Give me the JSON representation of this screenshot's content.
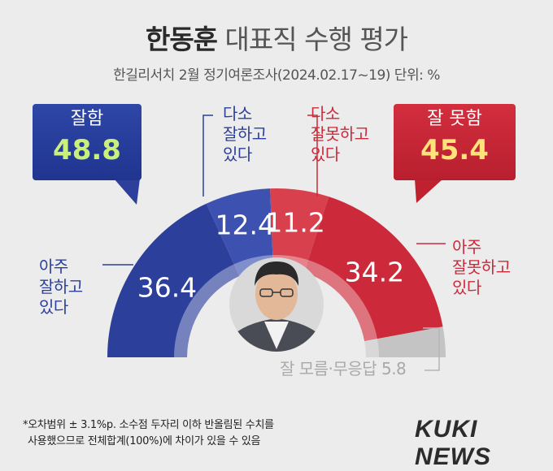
{
  "title_main": "한동훈",
  "title_rest": " 대표직 수행 평가",
  "subtitle": "한길리서치 2월 정기여론조사(2024.02.17~19) 단위: %",
  "summary": {
    "good": {
      "label": "잘함",
      "value": "48.8"
    },
    "bad": {
      "label": "잘 못함",
      "value": "45.4"
    }
  },
  "categories": {
    "very_good": {
      "line1": "아주",
      "line2": "잘하고",
      "line3": "있다"
    },
    "somewhat_good": {
      "line1": "다소",
      "line2": "잘하고",
      "line3": "있다"
    },
    "somewhat_bad": {
      "line1": "다소",
      "line2": "잘못하고",
      "line3": "있다"
    },
    "very_bad": {
      "line1": "아주",
      "line2": "잘못하고",
      "line3": "있다"
    },
    "unknown": "잘 모름·무응답 5.8"
  },
  "footnote": {
    "line1": "*오차범위 ± 3.1%p. 소수점 두자리 이하 반올림된 수치를",
    "line2": "사용했으므로 전체합계(100%)에 차이가 있을 수 있음"
  },
  "logo": "KUKI NEWS",
  "colors": {
    "blue": "#2c3f9a",
    "blue_light": "#3d52b0",
    "red": "#cc2a3a",
    "red_light": "#d8404e",
    "gray": "#c4c4c4"
  },
  "chart_data": {
    "type": "pie",
    "title": "한동훈 대표직 수행 평가",
    "subtitle": "한길리서치 2월 정기여론조사(2024.02.17~19) 단위: %",
    "series": [
      {
        "name": "아주 잘하고 있다",
        "value": 36.4
      },
      {
        "name": "다소 잘하고 있다",
        "value": 12.4
      },
      {
        "name": "다소 잘못하고 있다",
        "value": 11.2
      },
      {
        "name": "아주 잘못하고 있다",
        "value": 34.2
      },
      {
        "name": "잘 모름·무응답",
        "value": 5.8
      }
    ],
    "totals": {
      "잘함": 48.8,
      "잘 못함": 45.4
    }
  }
}
